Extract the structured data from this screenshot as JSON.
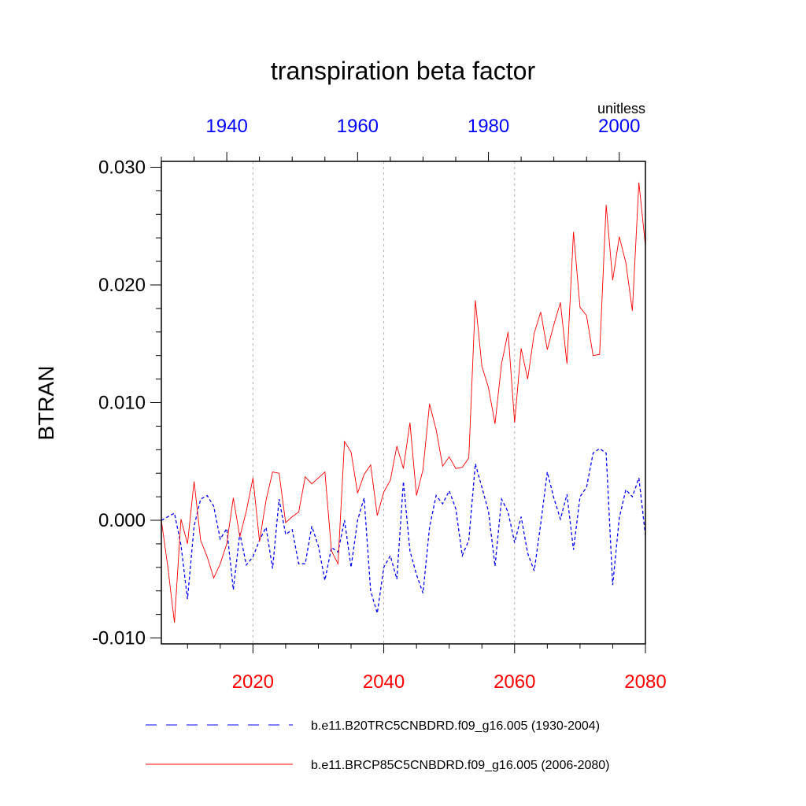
{
  "chart_data": {
    "type": "line",
    "title": "transpiration beta factor",
    "ylabel": "BTRAN",
    "units": "unitless",
    "ylim": [
      -0.0105,
      0.0305
    ],
    "y_ticks": [
      -0.01,
      0.0,
      0.01,
      0.02,
      0.03
    ],
    "y_tick_labels": [
      "-0.010",
      "0.000",
      "0.010",
      "0.020",
      "0.030"
    ],
    "bottom_axis": {
      "range": [
        2006,
        2080
      ],
      "ticks": [
        2020,
        2040,
        2060,
        2080
      ],
      "tick_labels": [
        "2020",
        "2040",
        "2060",
        "2080"
      ],
      "color": "#ff0000"
    },
    "top_axis": {
      "range": [
        1930,
        2004
      ],
      "ticks": [
        1940,
        1960,
        1980,
        2000
      ],
      "tick_labels": [
        "1940",
        "1960",
        "1980",
        "2000"
      ],
      "color": "#0000ff"
    },
    "grid": "vertical dotted at major bottom ticks",
    "series": [
      {
        "name": "b.e11.B20TRC5CNBDRD.f09_g16.005 (1930-2004)",
        "color": "#0000ff",
        "dash": "dashed",
        "axis": "top",
        "x": [
          1930,
          1931,
          1932,
          1933,
          1934,
          1935,
          1936,
          1937,
          1938,
          1939,
          1940,
          1941,
          1942,
          1943,
          1944,
          1945,
          1946,
          1947,
          1948,
          1949,
          1950,
          1951,
          1952,
          1953,
          1954,
          1955,
          1956,
          1957,
          1958,
          1959,
          1960,
          1961,
          1962,
          1963,
          1964,
          1965,
          1966,
          1967,
          1968,
          1969,
          1970,
          1971,
          1972,
          1973,
          1974,
          1975,
          1976,
          1977,
          1978,
          1979,
          1980,
          1981,
          1982,
          1983,
          1984,
          1985,
          1986,
          1987,
          1988,
          1989,
          1990,
          1991,
          1992,
          1993,
          1994,
          1995,
          1996,
          1997,
          1998,
          1999,
          2000,
          2001,
          2002,
          2003,
          2004
        ],
        "values": [
          0.0,
          0.0003,
          0.0006,
          -0.0021,
          -0.0067,
          -0.0005,
          0.0018,
          0.0021,
          0.0012,
          -0.0016,
          -0.0007,
          -0.0059,
          -0.0011,
          -0.0038,
          -0.0031,
          -0.0017,
          -0.0006,
          -0.0041,
          0.0018,
          -0.0012,
          -0.0008,
          -0.0037,
          -0.0037,
          -0.0005,
          -0.0022,
          -0.0051,
          -0.0023,
          -0.0027,
          0.0,
          -0.004,
          0.0,
          0.0019,
          -0.006,
          -0.0079,
          -0.004,
          -0.003,
          -0.005,
          0.0033,
          -0.0026,
          -0.0046,
          -0.0062,
          -0.0006,
          0.0021,
          0.0014,
          0.0025,
          0.001,
          -0.003,
          -0.0017,
          0.0048,
          0.0028,
          0.0008,
          -0.0039,
          0.0018,
          0.0007,
          -0.0019,
          0.0003,
          -0.0028,
          -0.0043,
          -0.0003,
          0.0041,
          0.0019,
          0.0001,
          0.0022,
          -0.0025,
          0.002,
          0.0028,
          0.0057,
          0.0061,
          0.0057,
          -0.0055,
          0.0002,
          0.0026,
          0.002,
          0.0036,
          -0.0013
        ]
      },
      {
        "name": "b.e11.BRCP85C5CNBDRD.f09_g16.005 (2006-2080)",
        "color": "#ff0000",
        "dash": "solid",
        "axis": "bottom",
        "x": [
          2006,
          2007,
          2008,
          2009,
          2010,
          2011,
          2012,
          2013,
          2014,
          2015,
          2016,
          2017,
          2018,
          2019,
          2020,
          2021,
          2022,
          2023,
          2024,
          2025,
          2026,
          2027,
          2028,
          2029,
          2030,
          2031,
          2032,
          2033,
          2034,
          2035,
          2036,
          2037,
          2038,
          2039,
          2040,
          2041,
          2042,
          2043,
          2044,
          2045,
          2046,
          2047,
          2048,
          2049,
          2050,
          2051,
          2052,
          2053,
          2054,
          2055,
          2056,
          2057,
          2058,
          2059,
          2060,
          2061,
          2062,
          2063,
          2064,
          2065,
          2066,
          2067,
          2068,
          2069,
          2070,
          2071,
          2072,
          2073,
          2074,
          2075,
          2076,
          2077,
          2078,
          2079,
          2080
        ],
        "values": [
          0.0,
          -0.004,
          -0.0087,
          0.0001,
          -0.002,
          0.0033,
          -0.0017,
          -0.0031,
          -0.0049,
          -0.0037,
          -0.002,
          0.0019,
          -0.0014,
          0.0008,
          0.0036,
          -0.0018,
          0.0017,
          0.0041,
          0.004,
          -0.0002,
          0.0003,
          0.0007,
          0.0037,
          0.0031,
          0.0036,
          0.0041,
          -0.0026,
          -0.0037,
          0.0067,
          0.0058,
          0.0023,
          0.0039,
          0.0047,
          0.0004,
          0.0024,
          0.0034,
          0.0063,
          0.0044,
          0.0083,
          0.0021,
          0.0043,
          0.0099,
          0.0077,
          0.0046,
          0.0054,
          0.0044,
          0.0045,
          0.0053,
          0.0187,
          0.0131,
          0.0113,
          0.0082,
          0.0133,
          0.016,
          0.0083,
          0.0146,
          0.012,
          0.0159,
          0.0177,
          0.0145,
          0.0166,
          0.0185,
          0.0133,
          0.0245,
          0.0181,
          0.0174,
          0.014,
          0.0141,
          0.0268,
          0.0204,
          0.0241,
          0.0219,
          0.0178,
          0.0287,
          0.0233
        ]
      }
    ]
  }
}
